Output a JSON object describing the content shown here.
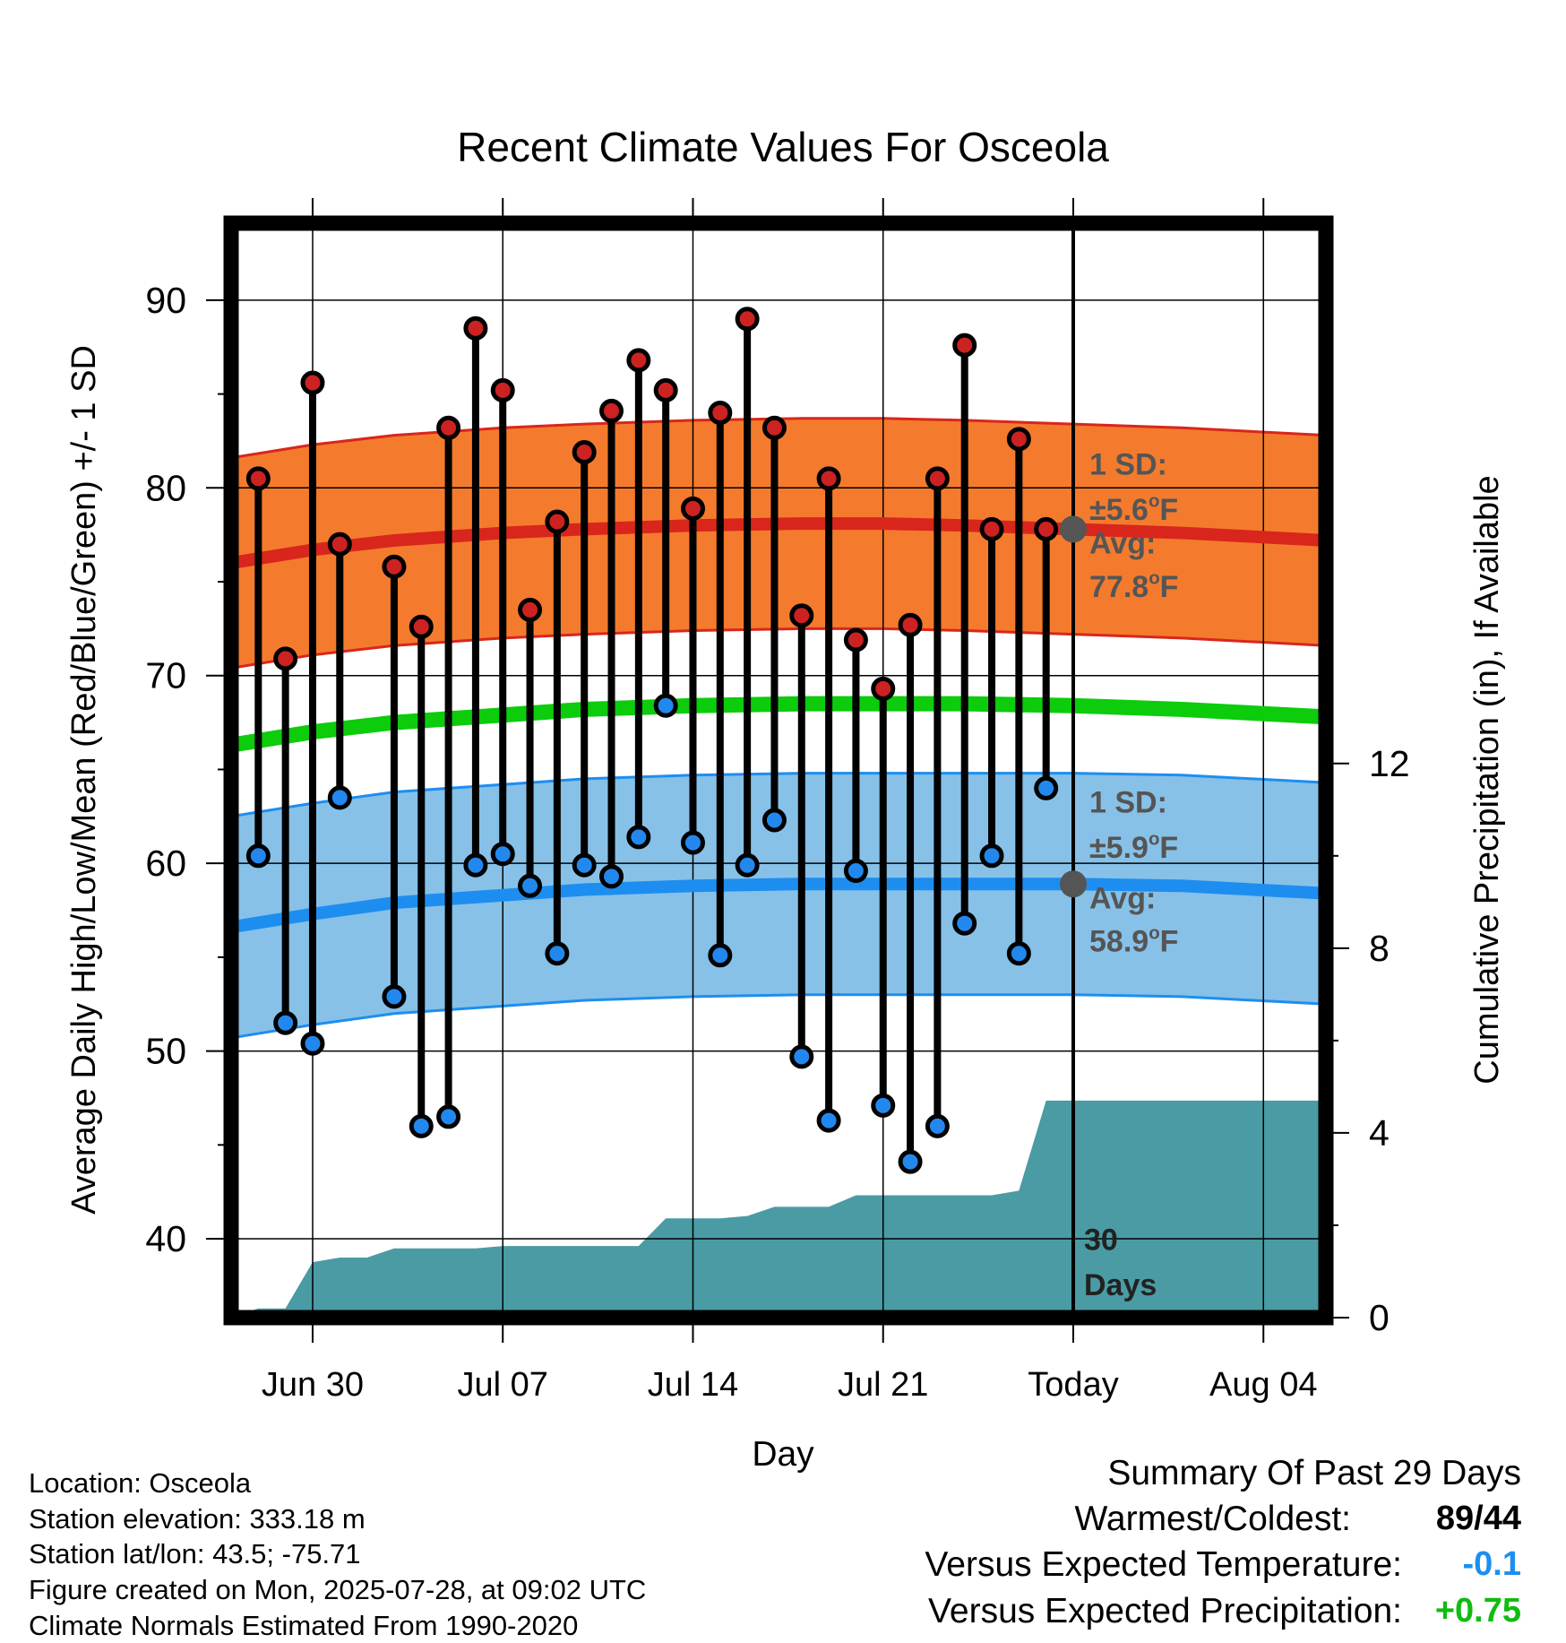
{
  "chart_data": {
    "type": "line",
    "title": "Recent Climate Values For Osceola",
    "xlabel": "Day",
    "ylabel": "Average Daily High/Low/Mean (Red/Blue/Green) +/- 1 SD",
    "y2label": "Cumulative Precipitation (in), If Available",
    "ylim": [
      35.8,
      94.1
    ],
    "y2lim": [
      0,
      23.7
    ],
    "yticks": [
      "40",
      "50",
      "60",
      "70",
      "80",
      "90"
    ],
    "y2ticks": [
      "0",
      "4",
      "8",
      "12"
    ],
    "xlim": [
      -3.0,
      37.3
    ],
    "x_dates": [
      "Jun 27",
      "Jun 28",
      "Jun 29",
      "Jun 30",
      "Jul 01",
      "Jul 02",
      "Jul 03",
      "Jul 04",
      "Jul 05",
      "Jul 06",
      "Jul 07",
      "Jul 08",
      "Jul 09",
      "Jul 10",
      "Jul 11",
      "Jul 12",
      "Jul 13",
      "Jul 14",
      "Jul 15",
      "Jul 16",
      "Jul 17",
      "Jul 18",
      "Jul 19",
      "Jul 20",
      "Jul 21",
      "Jul 22",
      "Jul 23",
      "Jul 24",
      "Jul 25",
      "Jul 26",
      "Jul 27",
      "Jul 28",
      "Aug 04"
    ],
    "xticks": [
      {
        "label": "Jun 30",
        "x": 0
      },
      {
        "label": "Jul 07",
        "x": 7
      },
      {
        "label": "Jul 14",
        "x": 14
      },
      {
        "label": "Jul 21",
        "x": 21
      },
      {
        "label": "Today",
        "x": 28
      },
      {
        "label": "Aug 04",
        "x": 35
      }
    ],
    "today_x": 28,
    "series": [
      {
        "name": "High",
        "color": "#cc2222",
        "x": [
          -2,
          -1,
          0,
          1,
          3,
          4,
          5,
          6,
          7,
          8,
          9,
          10,
          11,
          12,
          13,
          14,
          15,
          16,
          17,
          18,
          19,
          20,
          21,
          22,
          23,
          24,
          25,
          26,
          27
        ],
        "values": [
          80.5,
          70.9,
          85.6,
          77.0,
          75.8,
          72.6,
          83.2,
          88.5,
          85.2,
          73.5,
          78.2,
          81.9,
          84.1,
          86.8,
          85.2,
          78.9,
          84.0,
          89.0,
          83.2,
          73.2,
          80.5,
          71.9,
          69.3,
          72.7,
          80.5,
          87.6,
          77.8,
          82.6,
          77.8
        ]
      },
      {
        "name": "Low",
        "color": "#2288ee",
        "x": [
          -2,
          -1,
          0,
          1,
          3,
          4,
          5,
          6,
          7,
          8,
          9,
          10,
          11,
          12,
          13,
          14,
          15,
          16,
          17,
          18,
          19,
          20,
          21,
          22,
          23,
          24,
          25,
          26,
          27
        ],
        "values": [
          60.4,
          51.5,
          50.4,
          63.5,
          52.9,
          46.0,
          46.5,
          59.9,
          60.5,
          58.8,
          55.2,
          59.9,
          59.3,
          61.4,
          68.4,
          61.1,
          55.1,
          59.9,
          62.3,
          49.7,
          46.3,
          59.6,
          47.1,
          44.1,
          46.0,
          56.8,
          60.4,
          55.2,
          64.0
        ]
      }
    ],
    "normals": {
      "x": [
        -3,
        0,
        3,
        7,
        10,
        14,
        18,
        21,
        24,
        28,
        32,
        37.3
      ],
      "high_avg": [
        76.0,
        76.7,
        77.2,
        77.6,
        77.8,
        78.0,
        78.1,
        78.1,
        78.0,
        77.8,
        77.6,
        77.2
      ],
      "low_avg": [
        56.6,
        57.3,
        57.9,
        58.3,
        58.6,
        58.8,
        58.9,
        58.9,
        58.9,
        58.9,
        58.8,
        58.4
      ],
      "mean_avg": [
        66.3,
        67.0,
        67.5,
        67.9,
        68.2,
        68.4,
        68.5,
        68.5,
        68.5,
        68.4,
        68.2,
        67.8
      ],
      "high_sd": 5.6,
      "low_sd": 5.9,
      "high_band_color": "#f47b2d",
      "high_line_color": "#d9261c",
      "low_band_color": "#87c1e8",
      "low_line_color": "#1d8ef0",
      "mean_color": "#0ccc0c"
    },
    "precipitation": {
      "color": "#4a9ba4",
      "x": [
        -3.0,
        -2.0,
        -1.0,
        0.0,
        1.0,
        2.0,
        3.0,
        4.0,
        5.0,
        6.0,
        7.0,
        8.0,
        9.0,
        10.0,
        11.0,
        12.0,
        13.0,
        14.0,
        15.0,
        16.0,
        17.0,
        18.0,
        19.0,
        20.0,
        21.0,
        22.0,
        23.0,
        24.0,
        25.0,
        26.0,
        27.0,
        28.0,
        37.3
      ],
      "values": [
        0.0,
        0.2,
        0.2,
        1.2,
        1.3,
        1.3,
        1.5,
        1.5,
        1.5,
        1.5,
        1.55,
        1.55,
        1.55,
        1.55,
        1.55,
        1.55,
        2.15,
        2.15,
        2.15,
        2.2,
        2.4,
        2.4,
        2.4,
        2.65,
        2.65,
        2.65,
        2.65,
        2.65,
        2.65,
        2.75,
        4.7,
        4.7,
        4.7
      ]
    },
    "annotations": {
      "high_sd_label": "1 SD:",
      "high_sd_value": "±5.6°F",
      "high_avg_label": "Avg:",
      "high_avg_value": "77.8°F",
      "low_sd_label": "1 SD:",
      "low_sd_value": "±5.9°F",
      "low_avg_label": "Avg:",
      "low_avg_value": "58.9°F",
      "today_high_avg": 77.8,
      "today_low_avg": 58.9,
      "days_count": "30",
      "days_label": "Days"
    },
    "grid": true
  },
  "footer": {
    "location": "Location: Osceola",
    "elevation": "Station elevation: 333.18 m",
    "latlon": "Station lat/lon: 43.5; -75.71",
    "created": "Figure created on Mon, 2025-07-28, at 09:02 UTC",
    "normals": "Climate Normals Estimated From 1990-2020"
  },
  "summary": {
    "title": "Summary Of Past 29 Days",
    "warmest_coldest_label": "Warmest/Coldest:",
    "warmest_coldest_value": "89/44",
    "temp_label": "Versus Expected Temperature:",
    "temp_value": "-0.1",
    "temp_color": "#1d8ef0",
    "precip_label": "Versus Expected Precipitation:",
    "precip_value": "+0.75",
    "precip_color": "#11bb11"
  }
}
